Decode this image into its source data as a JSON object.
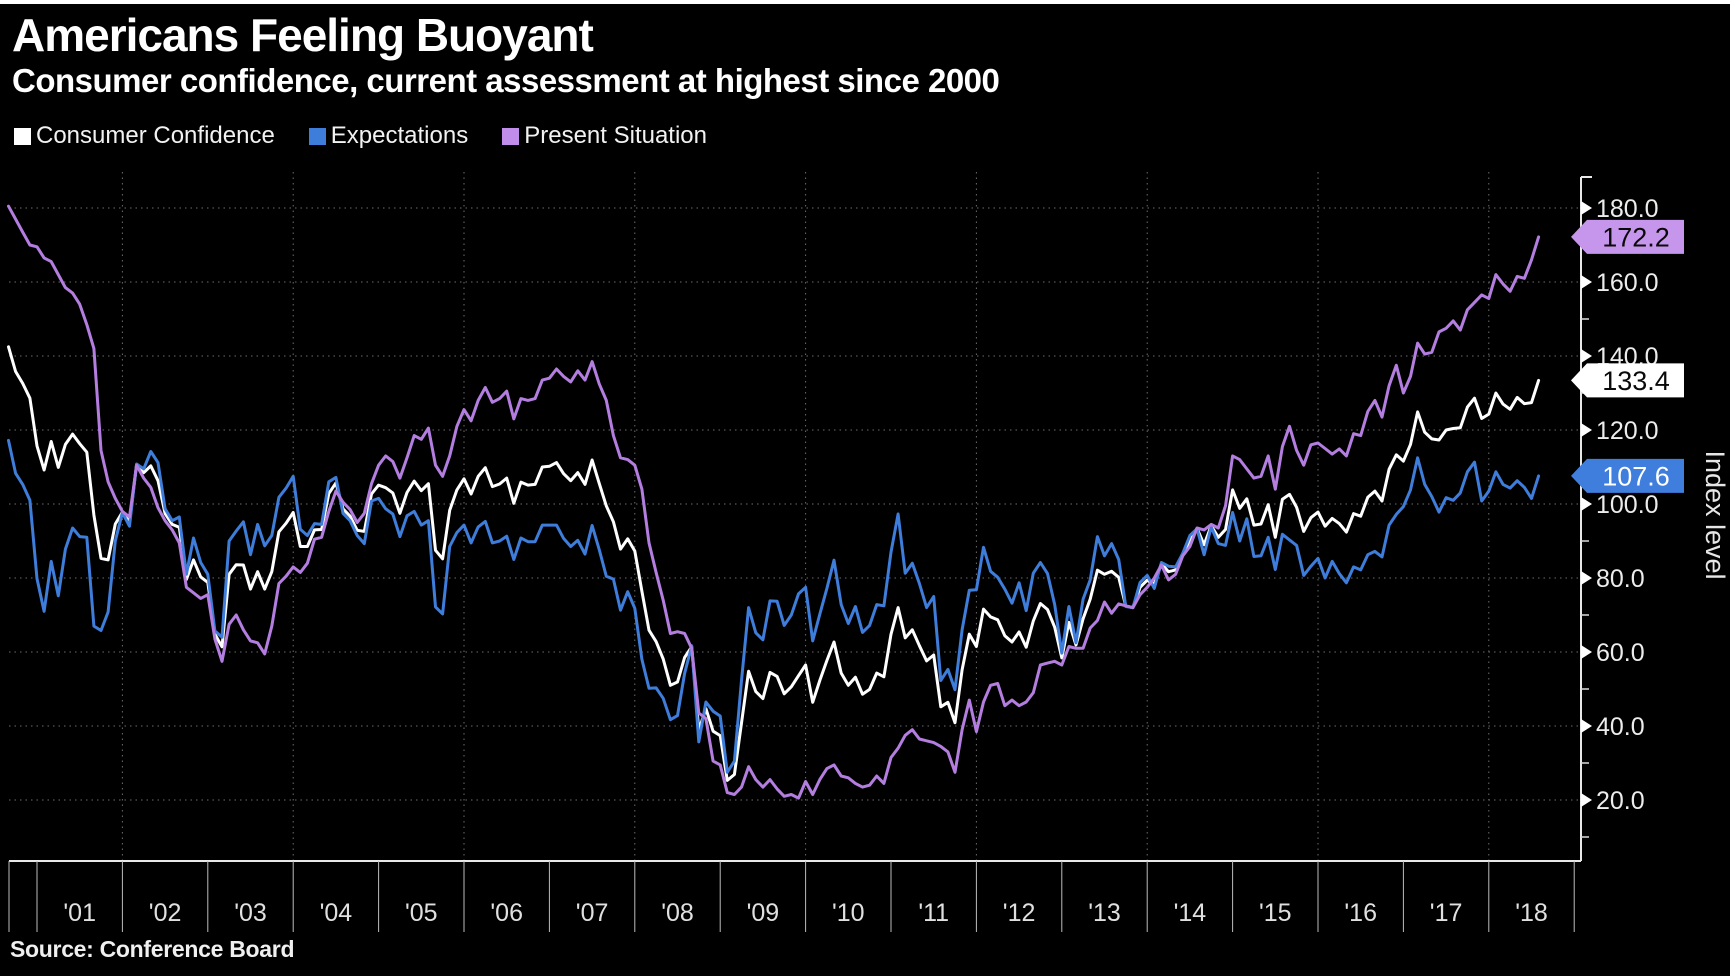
{
  "header": {
    "title": "Americans Feeling Buoyant",
    "subtitle": "Consumer confidence, current assessment at highest since 2000",
    "source": "Source: Conference Board"
  },
  "legend": {
    "items": [
      {
        "label": "Consumer Confidence",
        "color": "#ffffff"
      },
      {
        "label": "Expectations",
        "color": "#3e7dda"
      },
      {
        "label": "Present Situation",
        "color": "#c08dea"
      }
    ]
  },
  "colors": {
    "background": "#000000",
    "grid": "#6c6c6c",
    "axis": "#e8e8e8",
    "tick_label": "#ececec"
  },
  "chart_data": {
    "type": "line",
    "title": "Americans Feeling Buoyant",
    "subtitle": "Consumer confidence, current assessment at highest since 2000",
    "source": "Source: Conference Board",
    "xlabel": "",
    "ylabel": "Index level",
    "frequency": "monthly",
    "x_start": "2000-09",
    "x_end": "2018-08",
    "x_tick_labels": [
      "'01",
      "'02",
      "'03",
      "'04",
      "'05",
      "'06",
      "'07",
      "'08",
      "'09",
      "'10",
      "'11",
      "'12",
      "'13",
      "'14",
      "'15",
      "'16",
      "'17",
      "'18"
    ],
    "y_ticks": [
      20,
      40,
      60,
      80,
      100,
      120,
      140,
      160,
      180
    ],
    "y_minor_ticks": [
      10,
      30,
      50,
      70,
      90,
      110,
      130,
      150,
      170
    ],
    "ylim": [
      3,
      192
    ],
    "grid": "dotted",
    "legend_position": "top-left",
    "series": [
      {
        "name": "Consumer Confidence",
        "color": "#ffffff",
        "end_label": "133.4",
        "badge_bg": "#ffffff",
        "badge_text_color": "#0a0a0a",
        "values": [
          142.5,
          135.8,
          132.6,
          128.6,
          115.7,
          109.2,
          116.9,
          109.9,
          116.1,
          118.9,
          116.3,
          114.0,
          97.0,
          85.3,
          84.9,
          94.6,
          97.8,
          95.0,
          110.7,
          108.5,
          110.3,
          106.3,
          97.4,
          94.5,
          93.7,
          79.6,
          84.9,
          80.3,
          78.8,
          64.8,
          61.4,
          81.0,
          83.6,
          83.5,
          77.0,
          81.7,
          77.0,
          81.7,
          92.5,
          94.8,
          97.7,
          88.5,
          88.5,
          93.0,
          93.1,
          102.8,
          105.7,
          98.7,
          96.7,
          92.9,
          92.6,
          102.7,
          105.1,
          104.4,
          103.0,
          97.5,
          103.1,
          106.2,
          103.6,
          105.5,
          87.5,
          85.2,
          98.3,
          103.8,
          106.8,
          102.7,
          107.5,
          109.8,
          104.7,
          105.4,
          107.0,
          100.2,
          105.9,
          105.1,
          105.3,
          110.0,
          110.2,
          111.2,
          108.2,
          106.3,
          108.5,
          105.3,
          111.9,
          105.6,
          99.5,
          95.2,
          87.8,
          90.6,
          87.3,
          76.4,
          65.9,
          62.8,
          58.1,
          51.0,
          51.9,
          58.5,
          61.4,
          38.8,
          44.7,
          38.6,
          37.4,
          25.3,
          26.9,
          40.8,
          54.8,
          49.3,
          47.4,
          54.5,
          53.4,
          48.7,
          50.6,
          53.6,
          56.5,
          46.4,
          52.3,
          57.7,
          62.7,
          54.3,
          51.0,
          53.2,
          48.6,
          49.9,
          54.3,
          53.3,
          64.8,
          72.0,
          63.8,
          66.0,
          61.7,
          57.6,
          59.2,
          45.2,
          46.4,
          40.9,
          55.2,
          64.8,
          61.5,
          71.6,
          69.5,
          68.7,
          64.4,
          62.7,
          65.4,
          61.3,
          68.4,
          73.1,
          71.5,
          66.7,
          58.4,
          68.0,
          61.9,
          69.0,
          74.3,
          82.1,
          81.0,
          81.8,
          80.2,
          72.4,
          72.0,
          77.5,
          79.4,
          78.3,
          83.9,
          81.7,
          82.2,
          86.4,
          90.3,
          93.4,
          89.0,
          94.1,
          91.0,
          93.1,
          103.8,
          98.8,
          101.4,
          94.3,
          94.6,
          99.8,
          91.0,
          101.3,
          102.6,
          99.1,
          92.6,
          96.3,
          97.8,
          94.0,
          96.1,
          94.7,
          92.4,
          97.4,
          96.7,
          101.8,
          103.5,
          100.8,
          109.4,
          113.3,
          111.6,
          116.1,
          124.9,
          119.4,
          117.6,
          117.3,
          120.0,
          120.4,
          120.6,
          126.2,
          128.6,
          123.1,
          124.3,
          130.0,
          127.0,
          125.6,
          128.8,
          127.1,
          127.4,
          133.4
        ]
      },
      {
        "name": "Expectations",
        "color": "#3e7dda",
        "end_label": "107.6",
        "badge_bg": "#3f7edc",
        "badge_text_color": "#ffffff",
        "values": [
          117.2,
          108.3,
          105.3,
          101.0,
          79.8,
          71.0,
          84.5,
          75.2,
          87.8,
          93.5,
          91.2,
          91.0,
          67.0,
          65.8,
          70.8,
          90.0,
          97.7,
          94.0,
          110.8,
          109.5,
          114.2,
          111.2,
          98.7,
          95.5,
          96.5,
          81.0,
          90.8,
          84.2,
          81.0,
          65.7,
          64.0,
          90.0,
          92.7,
          95.2,
          86.3,
          94.5,
          88.7,
          91.5,
          101.8,
          104.3,
          107.5,
          93.2,
          91.5,
          94.7,
          94.5,
          106.0,
          107.2,
          97.5,
          95.5,
          91.5,
          89.3,
          100.8,
          101.5,
          98.7,
          97.3,
          91.2,
          96.8,
          98.0,
          94.3,
          95.5,
          72.2,
          70.3,
          88.5,
          92.3,
          94.3,
          89.5,
          93.8,
          95.3,
          89.5,
          90.0,
          91.3,
          85.0,
          90.8,
          89.8,
          89.8,
          94.3,
          94.3,
          94.3,
          90.7,
          88.5,
          90.2,
          86.5,
          94.2,
          87.7,
          80.5,
          79.7,
          71.3,
          76.3,
          71.8,
          58.0,
          50.2,
          50.3,
          47.5,
          41.7,
          42.8,
          54.2,
          61.7,
          35.7,
          46.5,
          44.0,
          42.7,
          27.5,
          30.5,
          52.3,
          72.0,
          65.2,
          63.3,
          73.8,
          73.7,
          67.2,
          70.0,
          75.7,
          77.5,
          63.0,
          70.2,
          77.2,
          84.8,
          72.8,
          67.7,
          72.3,
          65.3,
          67.2,
          72.8,
          72.5,
          87.0,
          97.3,
          81.3,
          84.0,
          78.5,
          72.0,
          75.0,
          52.3,
          55.3,
          49.8,
          66.0,
          76.7,
          76.8,
          88.3,
          81.8,
          80.2,
          77.0,
          73.2,
          78.7,
          71.2,
          81.3,
          84.2,
          81.2,
          72.8,
          59.7,
          72.3,
          62.5,
          74.3,
          79.5,
          91.2,
          86.0,
          89.3,
          85.0,
          72.3,
          72.0,
          78.8,
          80.7,
          77.2,
          84.2,
          83.2,
          83.0,
          86.7,
          91.5,
          93.3,
          86.3,
          93.8,
          89.3,
          88.8,
          97.7,
          90.0,
          96.0,
          85.8,
          86.0,
          91.0,
          82.3,
          91.8,
          90.3,
          88.8,
          80.7,
          83.2,
          85.3,
          80.0,
          84.5,
          81.2,
          78.7,
          83.0,
          82.2,
          86.3,
          87.2,
          85.7,
          94.3,
          97.2,
          99.3,
          103.8,
          112.5,
          105.3,
          102.0,
          97.8,
          101.7,
          101.0,
          103.0,
          108.7,
          111.3,
          100.8,
          103.5,
          108.7,
          105.3,
          104.3,
          106.3,
          104.5,
          101.5,
          107.6
        ]
      },
      {
        "name": "Present Situation",
        "color": "#b47ee0",
        "end_label": "172.2",
        "badge_bg": "#c695ec",
        "badge_text_color": "#0a0a0a",
        "values": [
          180.5,
          177.0,
          173.5,
          170.0,
          169.5,
          166.5,
          165.5,
          162.0,
          158.5,
          157.0,
          154.0,
          148.5,
          142.0,
          114.5,
          106.0,
          101.5,
          98.0,
          96.5,
          110.5,
          107.0,
          104.5,
          99.0,
          95.5,
          93.0,
          89.5,
          77.5,
          76.0,
          74.5,
          75.5,
          63.5,
          57.5,
          67.5,
          70.0,
          66.0,
          63.0,
          62.5,
          59.5,
          67.0,
          78.5,
          80.5,
          83.0,
          81.5,
          84.0,
          90.5,
          91.0,
          98.0,
          103.5,
          100.5,
          98.5,
          95.0,
          97.5,
          105.5,
          110.5,
          113.0,
          111.5,
          107.0,
          112.5,
          118.5,
          117.5,
          120.5,
          110.5,
          107.5,
          113.0,
          121.0,
          125.5,
          122.5,
          128.0,
          131.5,
          127.5,
          128.5,
          130.5,
          123.0,
          128.5,
          128.0,
          128.5,
          133.5,
          134.0,
          136.5,
          134.5,
          133.0,
          136.0,
          133.5,
          138.5,
          132.5,
          128.0,
          118.5,
          112.5,
          112.0,
          110.5,
          104.0,
          89.5,
          81.5,
          74.0,
          65.0,
          65.5,
          65.0,
          61.0,
          43.5,
          42.0,
          30.5,
          29.5,
          22.0,
          21.5,
          23.5,
          29.0,
          25.5,
          23.5,
          25.5,
          23.0,
          21.0,
          21.5,
          20.5,
          25.0,
          21.5,
          25.5,
          28.5,
          29.5,
          26.5,
          26.0,
          24.5,
          23.5,
          24.0,
          26.5,
          24.5,
          31.5,
          34.0,
          37.5,
          39.0,
          36.5,
          36.0,
          35.5,
          34.5,
          33.0,
          27.5,
          39.0,
          47.0,
          38.5,
          46.5,
          51.0,
          51.5,
          45.5,
          47.0,
          45.5,
          46.5,
          49.0,
          56.5,
          57.0,
          57.5,
          56.5,
          61.5,
          61.0,
          61.0,
          66.5,
          68.5,
          73.5,
          70.5,
          73.0,
          72.5,
          72.0,
          75.5,
          77.5,
          80.0,
          83.5,
          79.5,
          81.0,
          86.0,
          88.5,
          93.5,
          93.0,
          94.5,
          93.5,
          99.5,
          113.0,
          112.0,
          109.5,
          107.0,
          107.5,
          113.0,
          104.0,
          115.5,
          121.0,
          114.5,
          110.5,
          116.0,
          116.5,
          115.0,
          113.5,
          114.9,
          113.0,
          119.0,
          118.5,
          125.0,
          128.0,
          123.5,
          132.0,
          137.5,
          130.0,
          134.5,
          143.5,
          140.5,
          141.0,
          146.5,
          147.5,
          149.5,
          147.0,
          152.5,
          154.5,
          156.5,
          155.5,
          162.0,
          159.5,
          157.5,
          161.5,
          161.0,
          166.0,
          172.2
        ]
      }
    ]
  }
}
